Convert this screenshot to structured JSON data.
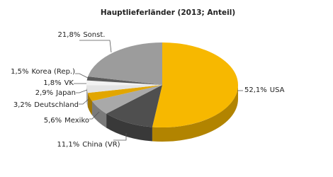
{
  "chart_data": {
    "type": "pie",
    "title": "Hauptlieferländer (2013; Anteil)",
    "categories": [
      "USA",
      "China (VR)",
      "Mexiko",
      "Deutschland",
      "Japan",
      "VK",
      "Korea (Rep.)",
      "Sonst."
    ],
    "values": [
      52.1,
      11.1,
      5.6,
      3.2,
      2.9,
      1.8,
      1.5,
      21.8
    ],
    "value_labels": [
      "52,1%",
      "11,1%",
      "5,6%",
      "3,2%",
      "2,9%",
      "1,8%",
      "1,5%",
      "21,8%"
    ],
    "colors": [
      "#f7b800",
      "#4f4f4f",
      "#a9a9a9",
      "#e2a600",
      "#e4e4e4",
      "#f2f2f2",
      "#5a5a5a",
      "#9c9c9c"
    ]
  }
}
